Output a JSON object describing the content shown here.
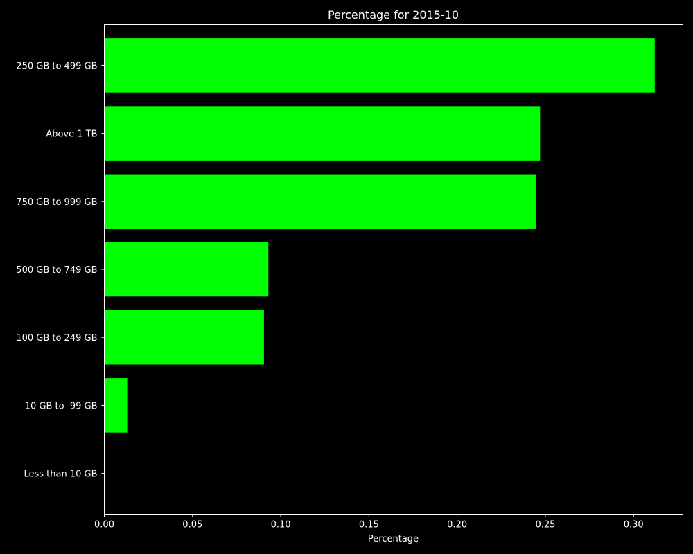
{
  "chart_data": {
    "type": "bar",
    "orientation": "horizontal",
    "title": "Percentage for 2015-10",
    "xlabel": "Percentage",
    "ylabel": "",
    "categories": [
      "250 GB to 499 GB",
      "Above 1 TB",
      "750 GB to 999 GB",
      "500 GB to 749 GB",
      "100 GB to 249 GB",
      "10 GB to  99 GB",
      "Less than 10 GB"
    ],
    "values": [
      0.312,
      0.247,
      0.2445,
      0.093,
      0.0905,
      0.013,
      0.0
    ],
    "xlim": [
      0,
      0.328
    ],
    "x_ticks": [
      0.0,
      0.05,
      0.1,
      0.15,
      0.2,
      0.25,
      0.3
    ],
    "x_tick_labels": [
      "0.00",
      "0.05",
      "0.10",
      "0.15",
      "0.20",
      "0.25",
      "0.30"
    ],
    "grid": false,
    "legend": "none",
    "colors": {
      "background": "#000000",
      "bar": "#00ff00",
      "axes": "#ffffff",
      "text": "#ffffff"
    }
  }
}
